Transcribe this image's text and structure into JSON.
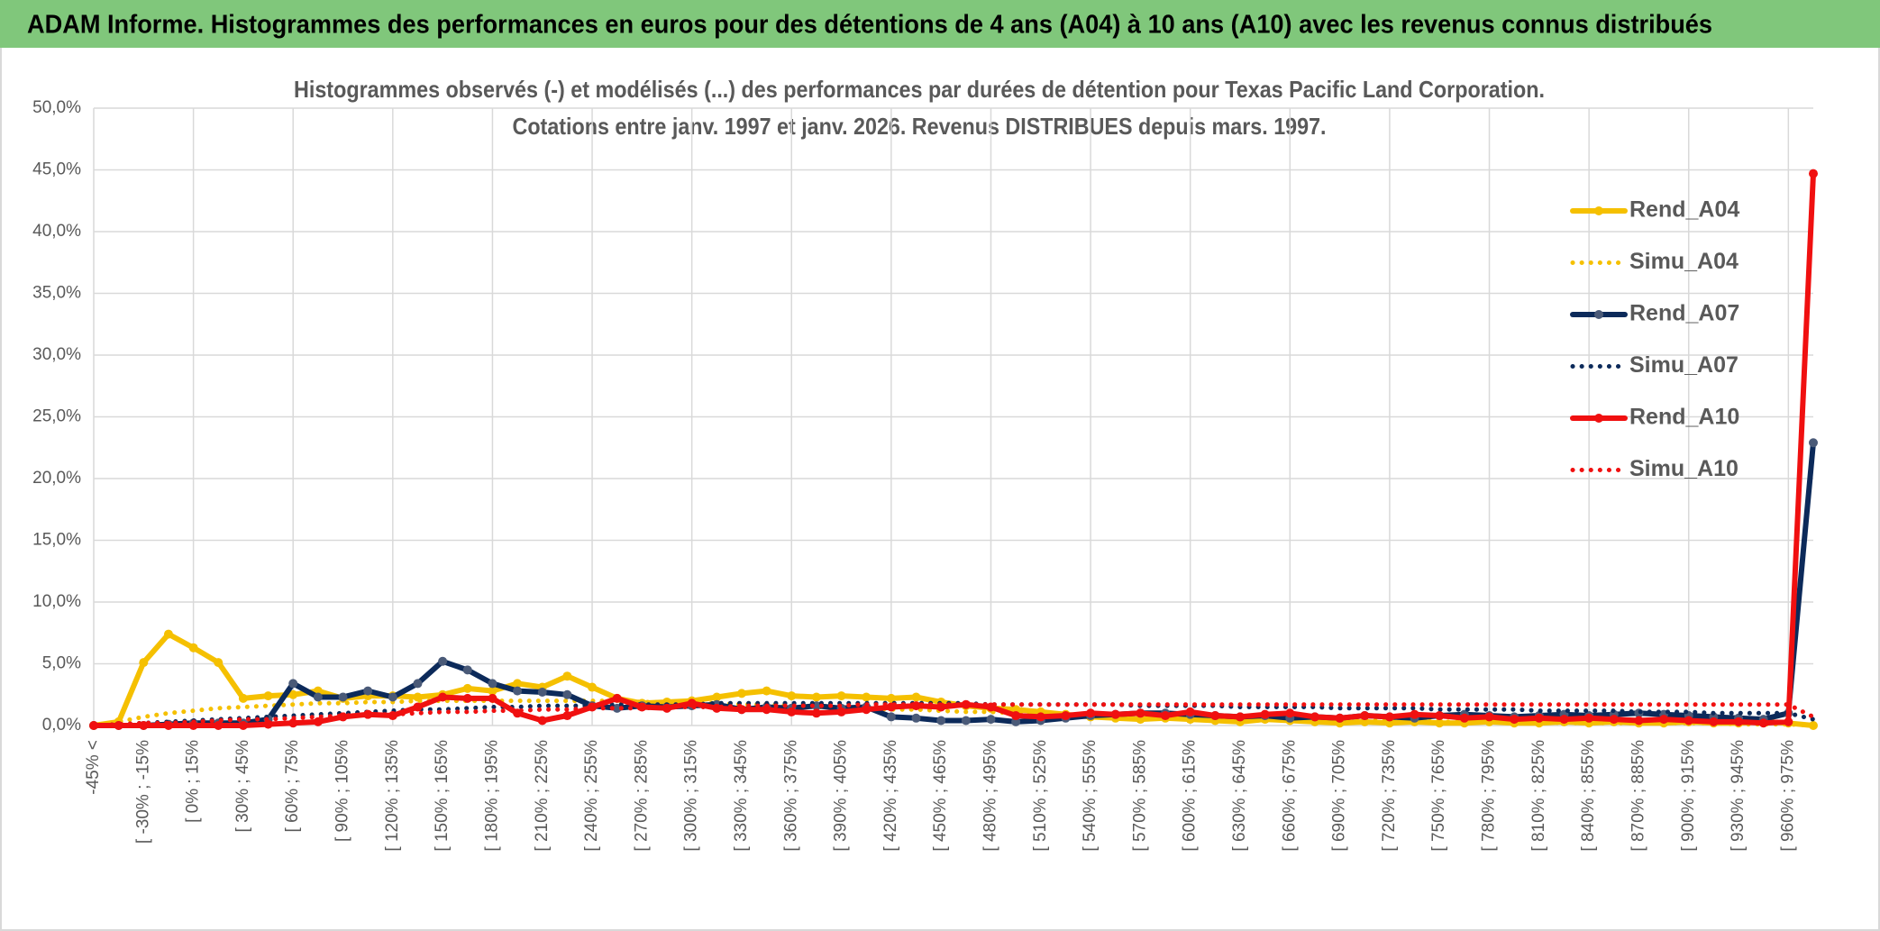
{
  "header": {
    "title": "ADAM Informe. Histogrammes des performances en euros pour des détentions de 4 ans (A04) à 10 ans (A10) avec les revenus connus distribués"
  },
  "chart_data": {
    "type": "line",
    "title": "Histogrammes observés (-) et modélisés (...) des performances par durées de détention pour Texas Pacific Land Corporation.",
    "subtitle": "Cotations entre janv. 1997 et janv. 2026. Revenus DISTRIBUES depuis mars. 1997.",
    "categories": [
      "-45% <",
      null,
      "[ -30% ; -15%",
      null,
      "[ 0% ; 15%",
      null,
      "[ 30% ; 45%",
      null,
      "[ 60% ; 75%",
      null,
      "[ 90% ; 105%",
      null,
      "[ 120% ; 135%",
      null,
      "[ 150% ; 165%",
      null,
      "[ 180% ; 195%",
      null,
      "[ 210% ; 225%",
      null,
      "[ 240% ; 255%",
      null,
      "[ 270% ; 285%",
      null,
      "[ 300% ; 315%",
      null,
      "[ 330% ; 345%",
      null,
      "[ 360% ; 375%",
      null,
      "[ 390% ; 405%",
      null,
      "[ 420% ; 435%",
      null,
      "[ 450% ; 465%",
      null,
      "[ 480% ; 495%",
      null,
      "[ 510% ; 525%",
      null,
      "[ 540% ; 555%",
      null,
      "[ 570% ; 585%",
      null,
      "[ 600% ; 615%",
      null,
      "[ 630% ; 645%",
      null,
      "[ 660% ; 675%",
      null,
      "[ 690% ; 705%",
      null,
      "[ 720% ; 735%",
      null,
      "[ 750% ; 765%",
      null,
      "[ 780% ; 795%",
      null,
      "[ 810% ; 825%",
      null,
      "[ 840% ; 855%",
      null,
      "[ 870% ; 885%",
      null,
      "[ 900% ; 915%",
      null,
      "[ 930% ; 945%",
      null,
      "[ 960% ; 975%",
      null
    ],
    "series": [
      {
        "name": "Rend_A04",
        "color": "#f5c000",
        "style": "solid",
        "markers": true,
        "values": [
          0,
          0.3,
          5.1,
          7.4,
          6.3,
          5.1,
          2.2,
          2.4,
          2.5,
          2.8,
          2.2,
          2.4,
          2.4,
          2.3,
          2.5,
          3.0,
          2.8,
          3.4,
          3.1,
          4.0,
          3.1,
          2.2,
          1.8,
          1.9,
          2.0,
          2.3,
          2.6,
          2.8,
          2.4,
          2.3,
          2.4,
          2.3,
          2.2,
          2.3,
          1.9,
          1.6,
          1.4,
          1.3,
          1.1,
          0.9,
          0.7,
          0.6,
          0.5,
          0.6,
          0.5,
          0.4,
          0.3,
          0.5,
          0.4,
          0.3,
          0.2,
          0.3,
          0.2,
          0.3,
          0.2,
          0.2,
          0.3,
          0.2,
          0.2,
          0.3,
          0.2,
          0.3,
          0.2,
          0.2,
          0.3,
          0.2,
          0.2,
          0.3,
          0.2,
          0.0
        ]
      },
      {
        "name": "Simu_A04",
        "color": "#f5c000",
        "style": "dotted",
        "markers": false,
        "values": [
          0,
          0.3,
          0.7,
          1.0,
          1.2,
          1.4,
          1.5,
          1.6,
          1.7,
          1.8,
          1.8,
          1.9,
          1.9,
          2.0,
          2.0,
          2.0,
          2.0,
          2.0,
          2.0,
          2.0,
          2.0,
          2.0,
          1.9,
          1.9,
          1.8,
          1.8,
          1.7,
          1.7,
          1.6,
          1.5,
          1.5,
          1.4,
          1.3,
          1.3,
          1.2,
          1.1,
          1.1,
          1.0,
          0.9,
          0.9,
          0.8,
          0.8,
          0.7,
          0.7,
          0.6,
          0.6,
          0.6,
          0.5,
          0.5,
          0.5,
          0.4,
          0.4,
          0.4,
          0.4,
          0.3,
          0.3,
          0.3,
          0.3,
          0.3,
          0.2,
          0.2,
          0.2,
          0.2,
          0.2,
          0.2,
          0.2,
          0.1,
          0.1,
          0.1,
          0.0
        ]
      },
      {
        "name": "Rend_A07",
        "color": "#0c2a5a",
        "style": "solid",
        "markers": true,
        "values": [
          0,
          0,
          0,
          0.1,
          0.2,
          0.2,
          0.2,
          0.5,
          3.4,
          2.3,
          2.3,
          2.8,
          2.3,
          3.4,
          5.2,
          4.5,
          3.4,
          2.8,
          2.7,
          2.5,
          1.6,
          1.4,
          1.6,
          1.5,
          1.6,
          1.7,
          1.3,
          1.5,
          1.4,
          1.6,
          1.4,
          1.5,
          0.7,
          0.6,
          0.4,
          0.4,
          0.5,
          0.3,
          0.4,
          0.6,
          0.8,
          0.9,
          1.0,
          1.0,
          0.9,
          0.8,
          0.7,
          0.8,
          0.6,
          0.7,
          0.6,
          0.8,
          0.7,
          0.6,
          0.8,
          0.9,
          0.8,
          0.7,
          0.8,
          0.9,
          0.8,
          0.9,
          1.0,
          0.9,
          0.8,
          0.7,
          0.6,
          0.5,
          1.0,
          22.9
        ]
      },
      {
        "name": "Simu_A07",
        "color": "#0c2a5a",
        "style": "dotted",
        "markers": false,
        "values": [
          0,
          0.1,
          0.2,
          0.3,
          0.4,
          0.5,
          0.6,
          0.7,
          0.8,
          0.9,
          1.0,
          1.1,
          1.2,
          1.3,
          1.3,
          1.4,
          1.5,
          1.5,
          1.6,
          1.6,
          1.6,
          1.7,
          1.7,
          1.7,
          1.7,
          1.8,
          1.8,
          1.8,
          1.8,
          1.8,
          1.8,
          1.8,
          1.8,
          1.8,
          1.8,
          1.8,
          1.7,
          1.7,
          1.7,
          1.7,
          1.7,
          1.7,
          1.6,
          1.6,
          1.6,
          1.6,
          1.5,
          1.5,
          1.5,
          1.5,
          1.4,
          1.4,
          1.4,
          1.4,
          1.3,
          1.3,
          1.3,
          1.3,
          1.2,
          1.2,
          1.2,
          1.2,
          1.1,
          1.1,
          1.1,
          1.0,
          1.0,
          1.0,
          1.0,
          0.5
        ]
      },
      {
        "name": "Rend_A10",
        "color": "#f01010",
        "style": "solid",
        "markers": true,
        "values": [
          0,
          0,
          0,
          0,
          0,
          0,
          0,
          0.1,
          0.2,
          0.3,
          0.7,
          0.9,
          0.8,
          1.5,
          2.3,
          2.2,
          2.2,
          1.0,
          0.4,
          0.8,
          1.5,
          2.2,
          1.5,
          1.4,
          1.8,
          1.4,
          1.3,
          1.3,
          1.1,
          1.0,
          1.1,
          1.3,
          1.5,
          1.6,
          1.5,
          1.7,
          1.5,
          0.8,
          0.7,
          0.8,
          1.0,
          0.9,
          1.0,
          0.8,
          1.1,
          0.8,
          0.7,
          0.9,
          1.0,
          0.7,
          0.6,
          0.8,
          0.7,
          0.9,
          0.8,
          0.6,
          0.7,
          0.5,
          0.6,
          0.5,
          0.6,
          0.5,
          0.4,
          0.5,
          0.4,
          0.3,
          0.3,
          0.2,
          0.3,
          44.7
        ]
      },
      {
        "name": "Simu_A10",
        "color": "#f01010",
        "style": "dotted",
        "markers": false,
        "values": [
          0,
          0.1,
          0.2,
          0.2,
          0.3,
          0.4,
          0.5,
          0.5,
          0.6,
          0.7,
          0.8,
          0.9,
          0.9,
          1.0,
          1.1,
          1.1,
          1.2,
          1.2,
          1.3,
          1.3,
          1.4,
          1.4,
          1.4,
          1.5,
          1.5,
          1.5,
          1.6,
          1.6,
          1.6,
          1.6,
          1.6,
          1.7,
          1.7,
          1.7,
          1.7,
          1.7,
          1.7,
          1.7,
          1.7,
          1.7,
          1.7,
          1.7,
          1.7,
          1.7,
          1.7,
          1.7,
          1.7,
          1.7,
          1.7,
          1.7,
          1.7,
          1.7,
          1.7,
          1.7,
          1.7,
          1.7,
          1.7,
          1.7,
          1.7,
          1.7,
          1.7,
          1.7,
          1.7,
          1.7,
          1.7,
          1.7,
          1.7,
          1.7,
          1.7,
          0.7
        ]
      }
    ],
    "ylim": [
      0,
      50
    ],
    "yticks": [
      {
        "value": 0,
        "label": "0,0%"
      },
      {
        "value": 5,
        "label": "5,0%"
      },
      {
        "value": 10,
        "label": "10,0%"
      },
      {
        "value": 15,
        "label": "15,0%"
      },
      {
        "value": 20,
        "label": "20,0%"
      },
      {
        "value": 25,
        "label": "25,0%"
      },
      {
        "value": 30,
        "label": "30,0%"
      },
      {
        "value": 35,
        "label": "35,0%"
      },
      {
        "value": 40,
        "label": "40,0%"
      },
      {
        "value": 45,
        "label": "45,0%"
      },
      {
        "value": 50,
        "label": "50,0%"
      }
    ],
    "grid": true,
    "legend": "right"
  }
}
